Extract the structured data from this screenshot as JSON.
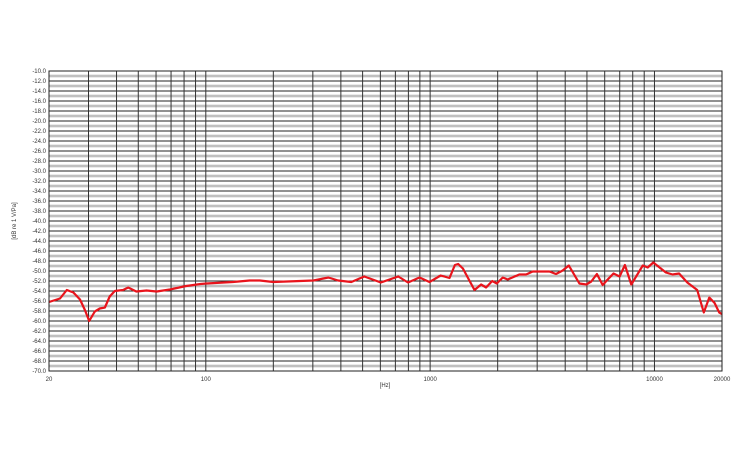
{
  "chart_data": {
    "type": "line",
    "title": "",
    "xlabel": "[Hz]",
    "ylabel": "[dB re 1 V/Pa]",
    "x_scale": "log",
    "xlim": [
      20,
      20000
    ],
    "ylim": [
      -70,
      -10
    ],
    "grid": true,
    "x_tick_labels": [
      "20",
      "100",
      "1000",
      "10000",
      "20000"
    ],
    "x_tick_values": [
      20,
      100,
      1000,
      10000,
      20000
    ],
    "y_tick_values": [
      -10,
      -12,
      -14,
      -16,
      -18,
      -20,
      -22,
      -24,
      -26,
      -28,
      -30,
      -32,
      -34,
      -36,
      -38,
      -40,
      -42,
      -44,
      -46,
      -48,
      -50,
      -52,
      -54,
      -56,
      -58,
      -60,
      -62,
      -64,
      -66,
      -68,
      -70
    ],
    "line_color": "#e8141c",
    "series": [
      {
        "x": [
          20,
          22.4,
          24,
          25.7,
          27.5,
          28.9,
          30.2,
          32,
          33.7,
          35.5,
          37.3,
          39.3,
          42.8,
          45.1,
          49,
          54.4,
          60.4,
          69.1,
          81.8,
          94.8,
          100.6,
          132,
          157,
          174,
          200,
          302,
          352,
          389,
          445,
          509,
          603,
          721,
          797,
          897,
          993,
          1114,
          1220,
          1289,
          1334,
          1400,
          1576,
          1688,
          1777,
          1890,
          1982,
          2108,
          2216,
          2498,
          2677,
          2865,
          3400,
          3640,
          3900,
          4150,
          4630,
          4960,
          5230,
          5540,
          5880,
          6190,
          6570,
          6990,
          7380,
          7880,
          8870,
          9330,
          9880,
          11250,
          12040,
          12880,
          14010,
          15510,
          16590,
          17560,
          18530,
          19440,
          20000
        ],
        "y": [
          -56.2,
          -55.5,
          -53.8,
          -54.3,
          -55.7,
          -57.8,
          -60.0,
          -58.1,
          -57.5,
          -57.3,
          -55.1,
          -54.0,
          -53.8,
          -53.3,
          -54.1,
          -53.9,
          -54.1,
          -53.7,
          -53.0,
          -52.6,
          -52.5,
          -52.2,
          -51.9,
          -51.9,
          -52.2,
          -51.9,
          -51.3,
          -51.9,
          -52.2,
          -51.1,
          -52.3,
          -51.1,
          -52.3,
          -51.3,
          -52.2,
          -50.9,
          -51.4,
          -48.8,
          -48.6,
          -49.5,
          -53.8,
          -52.7,
          -53.3,
          -52.0,
          -52.5,
          -51.3,
          -51.7,
          -50.7,
          -50.7,
          -50.1,
          -50.1,
          -50.6,
          -49.9,
          -48.9,
          -52.5,
          -52.7,
          -52.1,
          -50.6,
          -52.8,
          -51.7,
          -50.5,
          -51.1,
          -48.8,
          -52.7,
          -48.9,
          -49.3,
          -48.3,
          -50.3,
          -50.7,
          -50.5,
          -52.3,
          -53.8,
          -58.3,
          -55.3,
          -56.4,
          -58.3,
          -58.6
        ]
      }
    ]
  }
}
